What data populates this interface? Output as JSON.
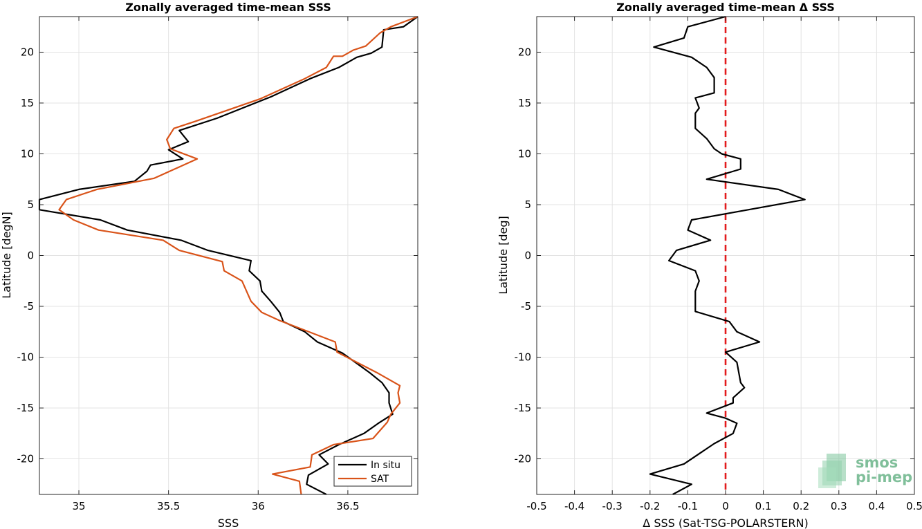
{
  "chart_data": [
    {
      "type": "line",
      "title": "Zonally averaged time-mean SSS",
      "xlabel": "SSS",
      "ylabel": "Latitude [degN]",
      "xlim": [
        34.78,
        36.89
      ],
      "ylim": [
        -23.5,
        23.5
      ],
      "xticks": [
        35,
        35.5,
        36,
        36.5
      ],
      "xtick_labels": [
        "35",
        "35.5",
        "36",
        "36.5"
      ],
      "yticks": [
        -20,
        -15,
        -10,
        -5,
        0,
        5,
        10,
        15,
        20
      ],
      "ytick_labels": [
        "-20",
        "-15",
        "-10",
        "-5",
        "0",
        "5",
        "10",
        "15",
        "20"
      ],
      "grid": true,
      "legend_position": "bottom-right",
      "series": [
        {
          "name": "In situ",
          "color": "#000000",
          "points": [
            [
              36.89,
              23.5
            ],
            [
              36.81,
              22.5
            ],
            [
              36.7,
              22.2
            ],
            [
              36.69,
              20.5
            ],
            [
              36.63,
              19.9
            ],
            [
              36.55,
              19.5
            ],
            [
              36.45,
              18.5
            ],
            [
              36.29,
              17.4
            ],
            [
              36.07,
              15.6
            ],
            [
              35.77,
              13.5
            ],
            [
              35.56,
              12.3
            ],
            [
              35.61,
              11.2
            ],
            [
              35.5,
              10.4
            ],
            [
              35.58,
              9.5
            ],
            [
              35.4,
              8.9
            ],
            [
              35.38,
              8.3
            ],
            [
              35.31,
              7.3
            ],
            [
              35.0,
              6.5
            ],
            [
              34.78,
              5.5
            ],
            [
              34.78,
              4.5
            ],
            [
              35.12,
              3.5
            ],
            [
              35.27,
              2.5
            ],
            [
              35.57,
              1.5
            ],
            [
              35.72,
              0.5
            ],
            [
              35.96,
              -0.5
            ],
            [
              35.95,
              -1.5
            ],
            [
              36.01,
              -2.5
            ],
            [
              36.02,
              -3.5
            ],
            [
              36.07,
              -4.5
            ],
            [
              36.12,
              -5.6
            ],
            [
              36.14,
              -6.5
            ],
            [
              36.26,
              -7.5
            ],
            [
              36.33,
              -8.5
            ],
            [
              36.47,
              -9.6
            ],
            [
              36.62,
              -11.5
            ],
            [
              36.69,
              -12.5
            ],
            [
              36.73,
              -13.5
            ],
            [
              36.73,
              -14.5
            ],
            [
              36.75,
              -15.6
            ],
            [
              36.67,
              -16.5
            ],
            [
              36.59,
              -17.5
            ],
            [
              36.45,
              -18.6
            ],
            [
              36.34,
              -19.6
            ],
            [
              36.39,
              -20.5
            ],
            [
              36.28,
              -21.6
            ],
            [
              36.27,
              -22.5
            ],
            [
              36.38,
              -23.5
            ]
          ]
        },
        {
          "name": "SAT",
          "color": "#d95319",
          "points": [
            [
              36.89,
              23.5
            ],
            [
              36.74,
              22.5
            ],
            [
              36.68,
              21.9
            ],
            [
              36.6,
              20.6
            ],
            [
              36.53,
              20.2
            ],
            [
              36.47,
              19.6
            ],
            [
              36.42,
              19.6
            ],
            [
              36.38,
              18.5
            ],
            [
              36.26,
              17.4
            ],
            [
              36.01,
              15.4
            ],
            [
              35.65,
              13.2
            ],
            [
              35.53,
              12.5
            ],
            [
              35.49,
              11.4
            ],
            [
              35.51,
              10.5
            ],
            [
              35.66,
              9.5
            ],
            [
              35.42,
              7.6
            ],
            [
              35.1,
              6.5
            ],
            [
              34.93,
              5.5
            ],
            [
              34.89,
              4.5
            ],
            [
              34.97,
              3.5
            ],
            [
              35.11,
              2.5
            ],
            [
              35.47,
              1.5
            ],
            [
              35.56,
              0.5
            ],
            [
              35.8,
              -0.6
            ],
            [
              35.81,
              -1.5
            ],
            [
              35.91,
              -2.5
            ],
            [
              35.96,
              -4.5
            ],
            [
              36.02,
              -5.6
            ],
            [
              36.12,
              -6.4
            ],
            [
              36.43,
              -8.5
            ],
            [
              36.44,
              -9.5
            ],
            [
              36.66,
              -11.5
            ],
            [
              36.79,
              -12.8
            ],
            [
              36.78,
              -13.5
            ],
            [
              36.79,
              -14.5
            ],
            [
              36.74,
              -15.6
            ],
            [
              36.72,
              -16.4
            ],
            [
              36.64,
              -18.0
            ],
            [
              36.42,
              -18.6
            ],
            [
              36.3,
              -19.6
            ],
            [
              36.29,
              -20.8
            ],
            [
              36.08,
              -21.5
            ],
            [
              36.23,
              -22.2
            ],
            [
              36.24,
              -23.5
            ]
          ]
        }
      ]
    },
    {
      "type": "line",
      "title": "Zonally averaged time-mean Δ SSS",
      "xlabel": "Δ SSS (Sat-TSG-POLARSTERN)",
      "ylabel": "Latitude [deg]",
      "xlim": [
        -0.5,
        0.5
      ],
      "ylim": [
        -23.5,
        23.5
      ],
      "xticks": [
        -0.5,
        -0.4,
        -0.3,
        -0.2,
        -0.1,
        0,
        0.1,
        0.2,
        0.3,
        0.4,
        0.5
      ],
      "xtick_labels": [
        "-0.5",
        "-0.4",
        "-0.3",
        "-0.2",
        "-0.1",
        "0",
        "0.1",
        "0.2",
        "0.3",
        "0.4",
        "0.5"
      ],
      "yticks": [
        -20,
        -15,
        -10,
        -5,
        0,
        5,
        10,
        15,
        20
      ],
      "ytick_labels": [
        "-20",
        "-15",
        "-10",
        "-5",
        "0",
        "5",
        "10",
        "15",
        "20"
      ],
      "grid": true,
      "zero_line": {
        "x": 0,
        "color": "#e31a1c",
        "style": "dashed"
      },
      "series": [
        {
          "color": "#000000",
          "points": [
            [
              0.0,
              23.5
            ],
            [
              -0.1,
              22.5
            ],
            [
              -0.11,
              21.4
            ],
            [
              -0.19,
              20.5
            ],
            [
              -0.09,
              19.5
            ],
            [
              -0.05,
              18.5
            ],
            [
              -0.03,
              17.5
            ],
            [
              -0.03,
              16.0
            ],
            [
              -0.08,
              15.5
            ],
            [
              -0.07,
              14.5
            ],
            [
              -0.08,
              14.0
            ],
            [
              -0.08,
              12.5
            ],
            [
              -0.05,
              11.5
            ],
            [
              -0.03,
              10.5
            ],
            [
              -0.01,
              10.0
            ],
            [
              0.04,
              9.5
            ],
            [
              0.04,
              8.5
            ],
            [
              -0.05,
              7.5
            ],
            [
              0.14,
              6.5
            ],
            [
              0.21,
              5.5
            ],
            [
              0.06,
              4.5
            ],
            [
              -0.09,
              3.5
            ],
            [
              -0.1,
              2.5
            ],
            [
              -0.04,
              1.5
            ],
            [
              -0.13,
              0.5
            ],
            [
              -0.15,
              -0.5
            ],
            [
              -0.08,
              -1.5
            ],
            [
              -0.07,
              -2.5
            ],
            [
              -0.08,
              -3.5
            ],
            [
              -0.08,
              -5.5
            ],
            [
              0.01,
              -6.5
            ],
            [
              0.03,
              -7.5
            ],
            [
              0.09,
              -8.5
            ],
            [
              0.0,
              -9.5
            ],
            [
              0.03,
              -10.5
            ],
            [
              0.04,
              -12.5
            ],
            [
              0.05,
              -13.0
            ],
            [
              0.02,
              -14.0
            ],
            [
              0.02,
              -14.5
            ],
            [
              -0.05,
              -15.5
            ],
            [
              0.0,
              -16.0
            ],
            [
              0.03,
              -16.5
            ],
            [
              0.02,
              -17.5
            ],
            [
              -0.03,
              -18.5
            ],
            [
              -0.11,
              -20.5
            ],
            [
              -0.2,
              -21.5
            ],
            [
              -0.09,
              -22.5
            ],
            [
              -0.14,
              -23.5
            ]
          ]
        }
      ]
    }
  ],
  "legend": {
    "items": [
      {
        "label": "In situ",
        "color": "#000000"
      },
      {
        "label": "SAT",
        "color": "#d95319"
      }
    ]
  },
  "watermark": {
    "line1": "smos",
    "line2": "pi-mep",
    "icon": "smos-logo-icon"
  }
}
